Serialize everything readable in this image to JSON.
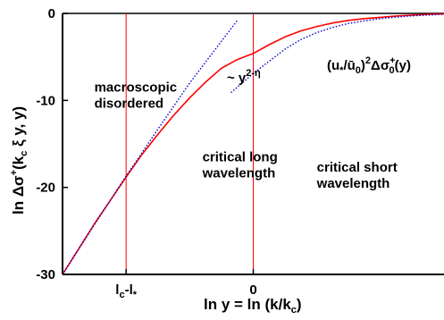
{
  "chart_data": {
    "type": "line",
    "title": "",
    "xlabel": {
      "main": "ln y = ln (k/k",
      "sub": "c",
      "close": ")"
    },
    "ylabel": {
      "main": "ln Δσ",
      "sup": "+",
      "open": "(k",
      "sub": "c",
      "rest": " ξ y, y)"
    },
    "xlim": [
      -6,
      6
    ],
    "ylim": [
      -30,
      0
    ],
    "x_ticks": [
      {
        "value": -4,
        "main": "l",
        "sub1": "c",
        "mid": "-l",
        "sub2": "*"
      },
      {
        "value": 0,
        "text": "0"
      }
    ],
    "y_ticks": [
      {
        "value": 0,
        "text": "0"
      },
      {
        "value": -10,
        "text": "-10"
      },
      {
        "value": -20,
        "text": "-20"
      },
      {
        "value": -30,
        "text": "-30"
      }
    ],
    "vertical_lines": [
      -4,
      0
    ],
    "regions": [
      {
        "lines": [
          "macroscopic",
          "disordered"
        ],
        "x": -5.0,
        "y": -9.0
      },
      {
        "lines": [
          "critical long",
          "wavelength"
        ],
        "x": -1.6,
        "y": -17.0
      },
      {
        "lines": [
          "critical short",
          "wavelength"
        ],
        "x": 2.0,
        "y": -18.2
      }
    ],
    "annotations": {
      "power_law": {
        "prefix": "~ y",
        "sup": "2-η"
      },
      "short_wavelength": {
        "open": "(u",
        "sub1": "*",
        "mid": "/ū",
        "sub2": "0",
        "close": ")",
        "sup1": "2",
        "delta": "Δσ",
        "sub3": "0",
        "sup2": "+",
        "end": "(y)"
      }
    },
    "series": [
      {
        "color": "#ff0000",
        "style": "solid",
        "x": [
          -6.0,
          -5.5,
          -5.0,
          -4.5,
          -4.0,
          -3.5,
          -3.0,
          -2.5,
          -2.0,
          -1.5,
          -1.0,
          -0.5,
          0.0,
          0.5,
          1.0,
          1.5,
          2.0,
          2.5,
          3.0,
          3.5,
          4.0,
          4.5,
          5.0,
          5.5,
          6.0
        ],
        "y": [
          -30.0,
          -27.1,
          -24.2,
          -21.5,
          -18.8,
          -16.2,
          -13.9,
          -11.7,
          -9.7,
          -7.9,
          -6.3,
          -5.3,
          -4.6,
          -3.6,
          -2.7,
          -2.0,
          -1.5,
          -1.1,
          -0.8,
          -0.6,
          -0.45,
          -0.3,
          -0.2,
          -0.1,
          -0.05
        ]
      },
      {
        "color": "#0000cc",
        "style": "dotted",
        "x": [
          -6.0,
          -5.0,
          -4.0,
          -3.0,
          -2.0,
          -1.0,
          -0.5
        ],
        "y": [
          -30.0,
          -24.3,
          -18.7,
          -13.3,
          -8.0,
          -3.2,
          -0.8
        ]
      },
      {
        "color": "#0000cc",
        "style": "dotted",
        "x": [
          -0.7,
          0.0,
          0.5,
          1.0,
          1.5,
          2.0,
          2.5,
          3.0,
          3.5,
          4.0,
          4.5,
          5.0,
          5.5,
          6.0
        ],
        "y": [
          -9.1,
          -6.9,
          -5.5,
          -4.1,
          -3.0,
          -2.2,
          -1.6,
          -1.15,
          -0.85,
          -0.6,
          -0.42,
          -0.28,
          -0.18,
          -0.1
        ]
      }
    ]
  }
}
